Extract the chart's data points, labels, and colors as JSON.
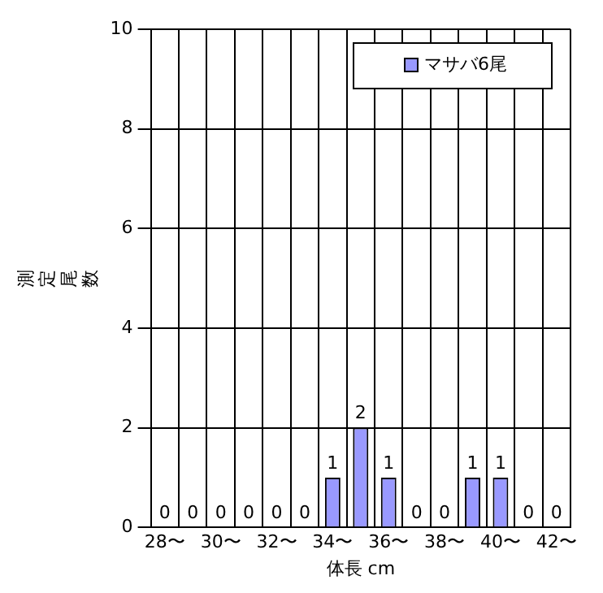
{
  "chart_data": {
    "type": "bar",
    "xlabel": "体長 cm",
    "ylabel": "測定尾数",
    "categories": [
      "28〜",
      null,
      "30〜",
      null,
      "32〜",
      null,
      "34〜",
      null,
      "36〜",
      null,
      "38〜",
      null,
      "40〜",
      null,
      "42〜"
    ],
    "series": [
      {
        "name": "マサバ6尾",
        "color": "#9999ff",
        "values": [
          0,
          0,
          0,
          0,
          0,
          0,
          1,
          2,
          1,
          0,
          0,
          1,
          1,
          0,
          0
        ]
      }
    ],
    "ylim": [
      0,
      10
    ],
    "yticks": [
      0,
      2,
      4,
      6,
      8,
      10
    ],
    "grid": true,
    "legend": "top right",
    "data_labels": true
  }
}
